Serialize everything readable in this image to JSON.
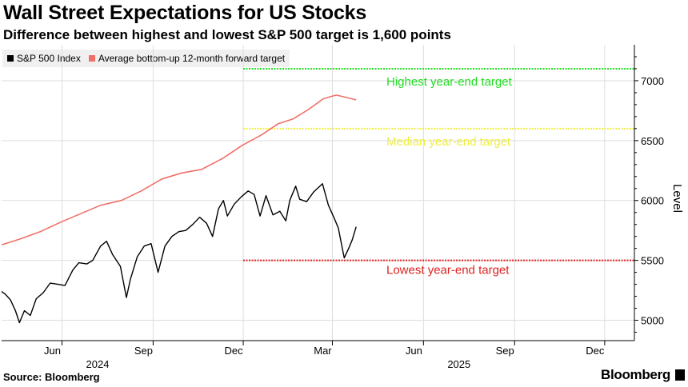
{
  "header": {
    "title": "Wall Street Expectations for US Stocks",
    "subtitle": "Difference between highest and lowest S&P 500 target is 1,600 points"
  },
  "footer": {
    "source": "Source: Bloomberg",
    "brand": "Bloomberg"
  },
  "colors": {
    "sp500": "#000000",
    "forward": "#f07068",
    "high": "#22dd22",
    "median": "#eeee44",
    "low": "#e02020"
  },
  "chart_data": {
    "type": "line",
    "title": "Wall Street Expectations for US Stocks",
    "subtitle": "Difference between highest and lowest S&P 500 target is 1,600 points",
    "ylabel": "Level",
    "ylim": [
      4830,
      7300
    ],
    "yticks": [
      5000,
      5500,
      6000,
      6500,
      7000
    ],
    "ytick_labels": [
      "5000",
      "5500",
      "6000",
      "6500",
      "7000"
    ],
    "xlim": [
      "2024-04-01",
      "2025-12-31"
    ],
    "xticks": [
      {
        "date": "2024-06-01",
        "label": "Jun"
      },
      {
        "date": "2024-09-01",
        "label": "Sep"
      },
      {
        "date": "2024-12-01",
        "label": "Dec"
      },
      {
        "date": "2025-03-01",
        "label": "Mar"
      },
      {
        "date": "2025-06-01",
        "label": "Jun"
      },
      {
        "date": "2025-09-01",
        "label": "Sep"
      },
      {
        "date": "2025-12-01",
        "label": "Dec"
      }
    ],
    "year_labels": [
      {
        "date": "2024-07-15",
        "label": "2024"
      },
      {
        "date": "2025-07-15",
        "label": "2025"
      }
    ],
    "legend": [
      "S&P 500 Index",
      "Average bottom-up 12-month forward target"
    ],
    "legend_position": "top-left",
    "series": [
      {
        "name": "S&P 500 Index",
        "points": [
          [
            "2024-04-01",
            5240
          ],
          [
            "2024-04-05",
            5215
          ],
          [
            "2024-04-10",
            5170
          ],
          [
            "2024-04-15",
            5080
          ],
          [
            "2024-04-19",
            4980
          ],
          [
            "2024-04-24",
            5080
          ],
          [
            "2024-04-30",
            5040
          ],
          [
            "2024-05-06",
            5180
          ],
          [
            "2024-05-13",
            5230
          ],
          [
            "2024-05-20",
            5310
          ],
          [
            "2024-05-28",
            5300
          ],
          [
            "2024-06-04",
            5290
          ],
          [
            "2024-06-12",
            5420
          ],
          [
            "2024-06-18",
            5480
          ],
          [
            "2024-06-26",
            5470
          ],
          [
            "2024-07-02",
            5500
          ],
          [
            "2024-07-10",
            5620
          ],
          [
            "2024-07-16",
            5660
          ],
          [
            "2024-07-22",
            5550
          ],
          [
            "2024-07-30",
            5450
          ],
          [
            "2024-08-05",
            5190
          ],
          [
            "2024-08-09",
            5340
          ],
          [
            "2024-08-16",
            5530
          ],
          [
            "2024-08-23",
            5620
          ],
          [
            "2024-08-30",
            5640
          ],
          [
            "2024-09-06",
            5400
          ],
          [
            "2024-09-13",
            5620
          ],
          [
            "2024-09-20",
            5700
          ],
          [
            "2024-09-27",
            5740
          ],
          [
            "2024-10-04",
            5750
          ],
          [
            "2024-10-11",
            5800
          ],
          [
            "2024-10-18",
            5860
          ],
          [
            "2024-10-25",
            5810
          ],
          [
            "2024-10-31",
            5700
          ],
          [
            "2024-11-06",
            5930
          ],
          [
            "2024-11-11",
            6000
          ],
          [
            "2024-11-15",
            5870
          ],
          [
            "2024-11-22",
            5970
          ],
          [
            "2024-11-29",
            6030
          ],
          [
            "2024-12-06",
            6080
          ],
          [
            "2024-12-12",
            6050
          ],
          [
            "2024-12-18",
            5870
          ],
          [
            "2024-12-24",
            6040
          ],
          [
            "2024-12-31",
            5880
          ],
          [
            "2025-01-07",
            5910
          ],
          [
            "2025-01-13",
            5830
          ],
          [
            "2025-01-17",
            6000
          ],
          [
            "2025-01-23",
            6120
          ],
          [
            "2025-01-27",
            6010
          ],
          [
            "2025-02-03",
            5990
          ],
          [
            "2025-02-10",
            6070
          ],
          [
            "2025-02-19",
            6140
          ],
          [
            "2025-02-25",
            5960
          ],
          [
            "2025-03-03",
            5850
          ],
          [
            "2025-03-07",
            5770
          ],
          [
            "2025-03-13",
            5520
          ],
          [
            "2025-03-18",
            5610
          ],
          [
            "2025-03-21",
            5670
          ],
          [
            "2025-03-25",
            5780
          ]
        ]
      },
      {
        "name": "Average bottom-up 12-month forward target",
        "points": [
          [
            "2024-04-01",
            5630
          ],
          [
            "2024-04-20",
            5680
          ],
          [
            "2024-05-10",
            5740
          ],
          [
            "2024-05-31",
            5820
          ],
          [
            "2024-06-20",
            5890
          ],
          [
            "2024-07-10",
            5960
          ],
          [
            "2024-07-31",
            6000
          ],
          [
            "2024-08-20",
            6080
          ],
          [
            "2024-09-10",
            6180
          ],
          [
            "2024-09-30",
            6230
          ],
          [
            "2024-10-20",
            6260
          ],
          [
            "2024-11-10",
            6350
          ],
          [
            "2024-11-30",
            6460
          ],
          [
            "2024-12-20",
            6550
          ],
          [
            "2025-01-05",
            6640
          ],
          [
            "2025-01-20",
            6680
          ],
          [
            "2025-02-05",
            6760
          ],
          [
            "2025-02-20",
            6850
          ],
          [
            "2025-03-05",
            6880
          ],
          [
            "2025-03-15",
            6860
          ],
          [
            "2025-03-25",
            6840
          ]
        ]
      }
    ],
    "reference_lines": [
      {
        "name": "Highest year-end target",
        "value": 7100,
        "from": "2024-12-01",
        "style": "dotted"
      },
      {
        "name": "Median year-end target",
        "value": 6600,
        "from": "2024-12-01",
        "style": "dotted"
      },
      {
        "name": "Lowest year-end target",
        "value": 5500,
        "from": "2024-12-01",
        "style": "dotted"
      }
    ]
  }
}
